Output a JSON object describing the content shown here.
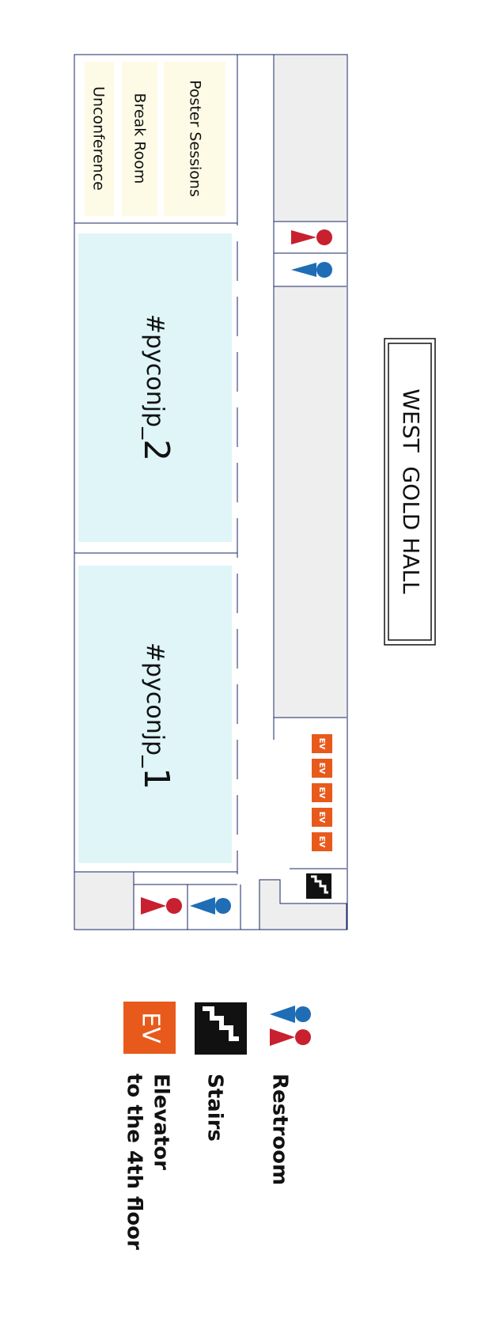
{
  "hall": {
    "name": "WEST  GOLD HALL"
  },
  "rooms": {
    "poster": "Poster Sessions",
    "break": "Break Room",
    "unconf": "Unconference",
    "room2_prefix": "#pyconjp_",
    "room2_num": "2",
    "room1_prefix": "#pyconjp_",
    "room1_num": "1"
  },
  "elevator_label": "EV",
  "legend": {
    "restroom": "Restroom",
    "stairs": "Stairs",
    "elevator_line1": "Elevator",
    "elevator_line2": "to the 4th floor",
    "elevator_badge": "EV"
  },
  "colors": {
    "room_fill": "#dff5f8",
    "small_room_fill": "#fdfbe6",
    "gray_fill": "#eeeeee",
    "wall": "#1a2466",
    "elevator": "#e85a1b",
    "female": "#c8202f",
    "male": "#1f6db5",
    "stairs": "#111111"
  }
}
